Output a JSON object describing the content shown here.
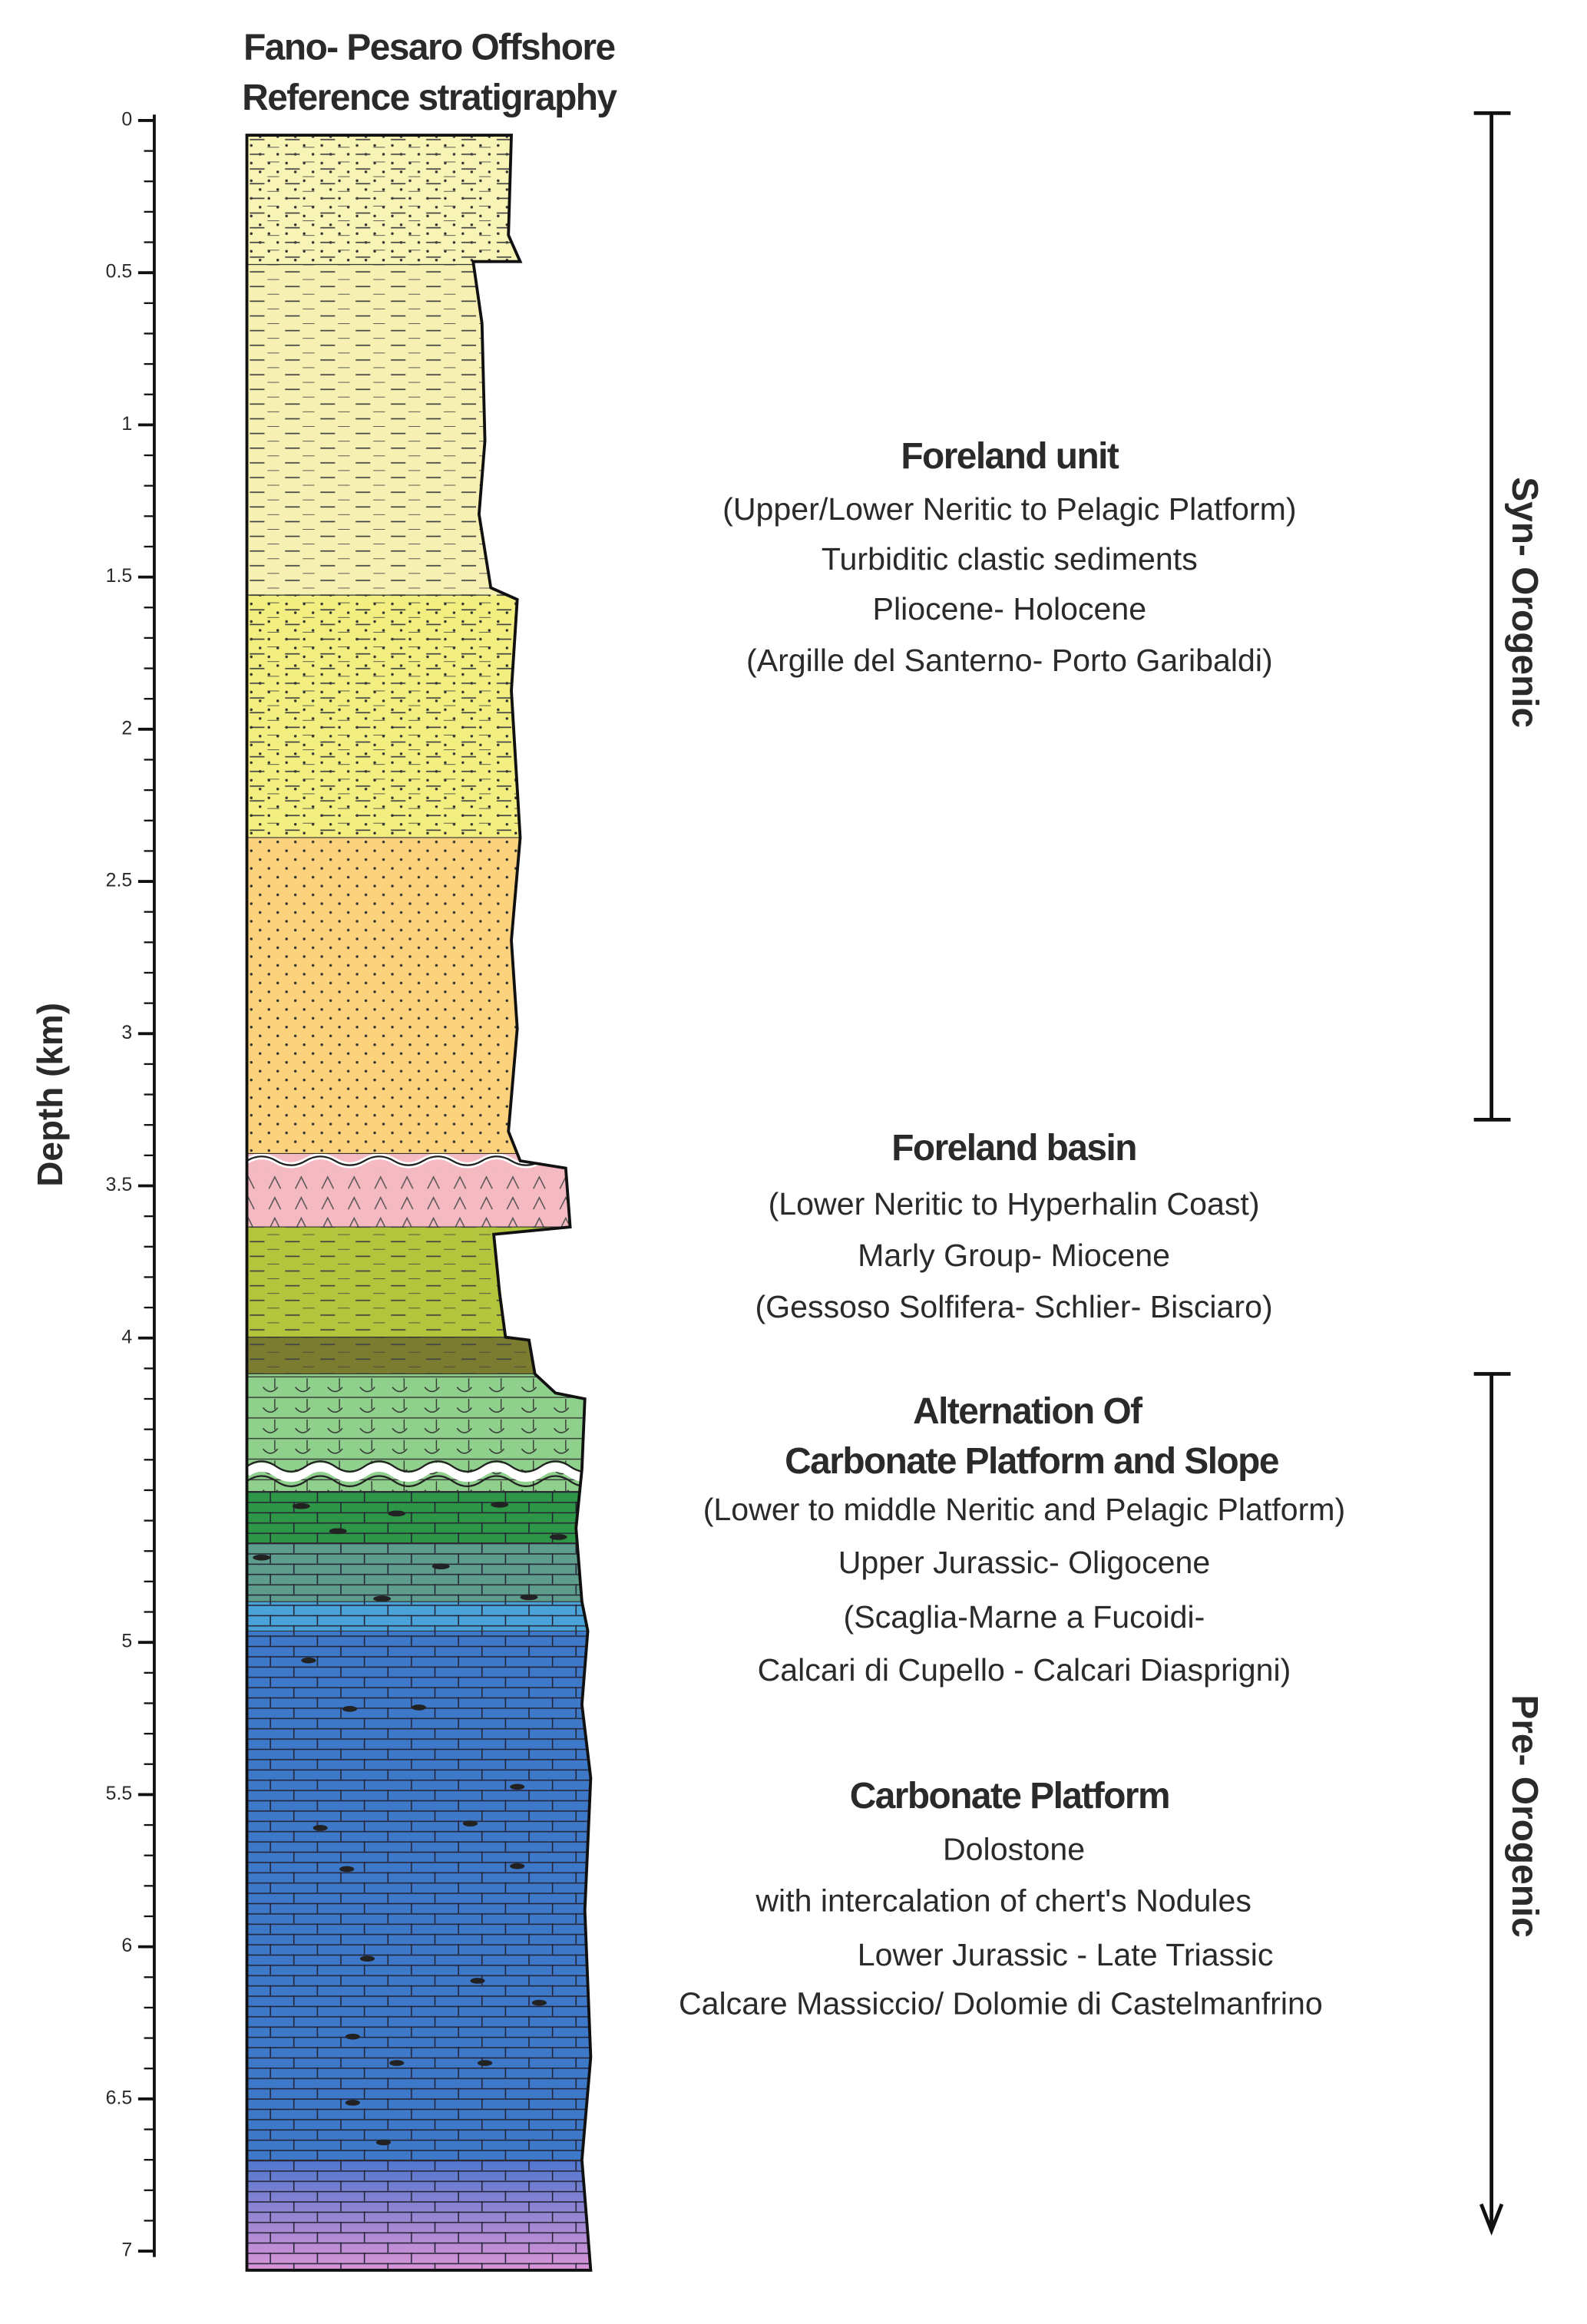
{
  "header": {
    "title_lines": [
      "Fano- Pesaro Offshore",
      "Reference stratigraphy"
    ]
  },
  "depth_axis": {
    "label": "Depth (km)",
    "ticks": [
      0,
      0.5,
      1,
      1.5,
      2,
      2.5,
      3,
      3.5,
      4,
      5,
      5.5,
      6,
      6.5,
      7
    ]
  },
  "units": [
    {
      "name_lines": [
        "Foreland unit"
      ],
      "lines": [
        "(Upper/Lower Neritic to  Pelagic Platform)",
        "Turbiditic clastic sediments",
        "Pliocene- Holocene",
        "(Argille del Santerno- Porto Garibaldi)"
      ]
    },
    {
      "name_lines": [
        "Foreland basin"
      ],
      "lines": [
        "(Lower Neritic to Hyperhalin Coast)",
        "Marly Group- Miocene",
        "(Gessoso Solfifera- Schlier- Bisciaro)"
      ]
    },
    {
      "name_lines": [
        "Alternation Of",
        "Carbonate Platform and Slope"
      ],
      "lines": [
        "(Lower to middle Neritic and Pelagic Platform)",
        "Upper Jurassic- Oligocene",
        "(Scaglia-Marne a Fucoidi-",
        "Calcari di Cupello  - Calcari Diasprigni)"
      ]
    },
    {
      "name_lines": [
        "Carbonate Platform"
      ],
      "lines": [
        "Dolostone",
        "with intercalation of chert's Nodules",
        "Lower Jurassic - Late Triassic",
        "Calcare Massiccio/ Dolomie di Castelmanfrino"
      ]
    }
  ],
  "phases": [
    {
      "label": "Syn- Orogenic"
    },
    {
      "label": "Pre- Orogenic"
    }
  ]
}
